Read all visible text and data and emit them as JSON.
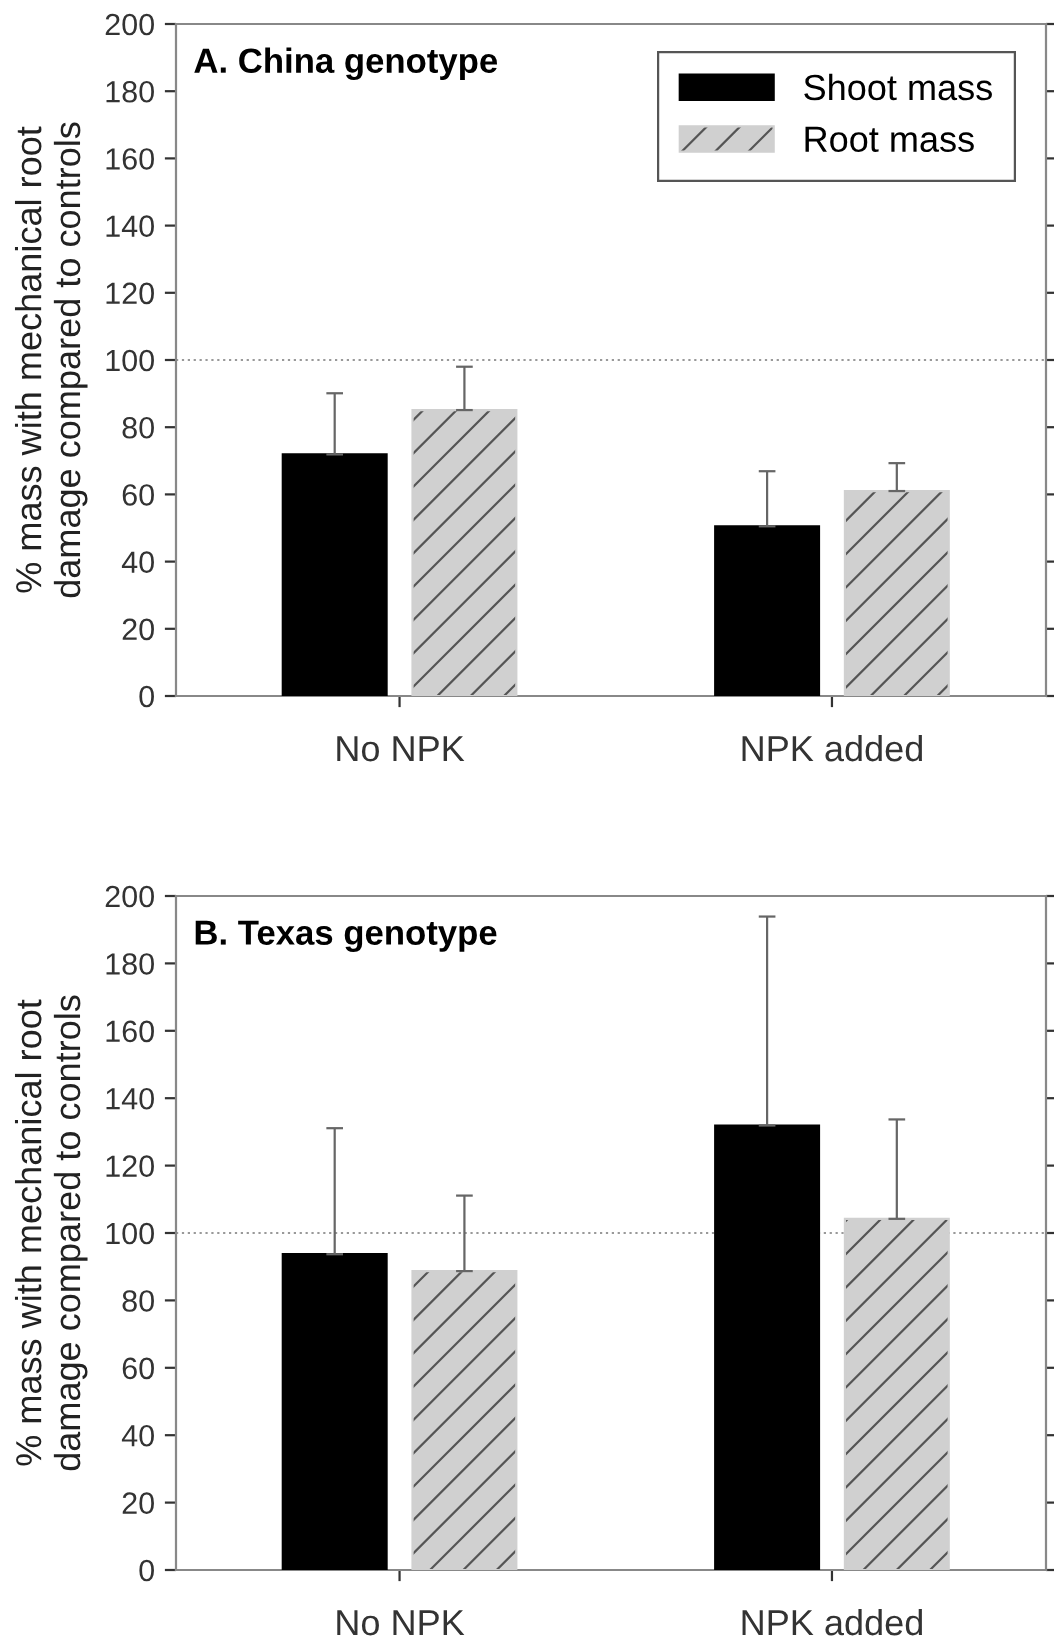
{
  "chart_data": [
    {
      "type": "bar",
      "title": "A. China genotype",
      "ylabel": "% mass with mechanical root\ndamage compared to controls",
      "categories": [
        "No NPK",
        "NPK added"
      ],
      "series": [
        {
          "name": "Shoot mass",
          "color": "#000000",
          "values": [
            71.9,
            50.5
          ],
          "errors": [
            [
              71.9,
              90.1
            ],
            [
              50.5,
              66.9
            ]
          ]
        },
        {
          "name": "Root mass",
          "color": "#d0d0d0",
          "values": [
            85.1,
            61.0
          ],
          "errors": [
            [
              85.1,
              98.0
            ],
            [
              61.0,
              69.3
            ]
          ]
        }
      ],
      "ylim": [
        0,
        200
      ],
      "yticks": [
        0,
        20,
        40,
        60,
        80,
        100,
        120,
        140,
        160,
        180,
        200
      ],
      "ref_lines": [
        {
          "axis": "y",
          "value": 100,
          "color": "#999999",
          "line_style": "dotted"
        }
      ],
      "legend": "top right",
      "grid": false
    },
    {
      "type": "bar",
      "title": "B. Texas genotype",
      "ylabel": "% mass with mechanical root\ndamage compared to controls",
      "categories": [
        "No NPK",
        "NPK added"
      ],
      "series": [
        {
          "color": "#000000",
          "values": [
            93.7,
            131.9
          ],
          "errors": [
            [
              93.7,
              131.1
            ],
            [
              131.9,
              193.9
            ]
          ]
        },
        {
          "color": "#d0d0d0",
          "values": [
            88.7,
            104.2
          ],
          "errors": [
            [
              88.7,
              111.1
            ],
            [
              104.2,
              133.7
            ]
          ]
        }
      ],
      "ylim": [
        0,
        200
      ],
      "yticks": [
        0,
        20,
        40,
        60,
        80,
        100,
        120,
        140,
        160,
        180,
        200
      ],
      "ref_lines": [
        {
          "axis": "y",
          "value": 100,
          "color": "#999999",
          "line_style": "dotted"
        }
      ],
      "legend": false,
      "grid": false
    }
  ]
}
